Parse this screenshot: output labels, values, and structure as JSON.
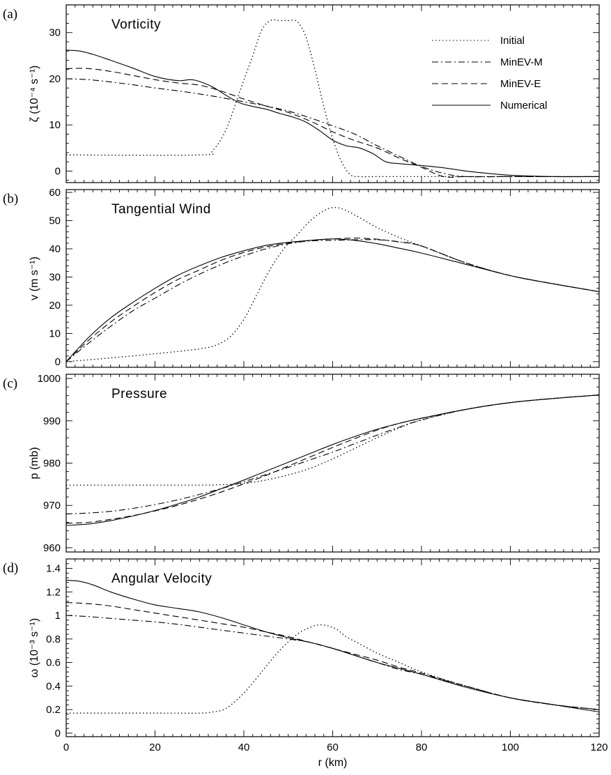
{
  "chart_data": [
    {
      "panel": "(a)",
      "title": "Vorticity",
      "type": "line",
      "ylabel": "ζ (10⁻⁴ s⁻¹)",
      "xlim": [
        0,
        120
      ],
      "ylim": [
        -2.5,
        36
      ],
      "yticks": [
        0,
        10,
        20,
        30
      ],
      "legend_position": "top-right",
      "series": [
        {
          "name": "Initial",
          "style": "dotted",
          "x": [
            0,
            30,
            33,
            36,
            39,
            42,
            44,
            46,
            48,
            50,
            52,
            54,
            56,
            58,
            60,
            62,
            64,
            66,
            70,
            80,
            100,
            120
          ],
          "y": [
            3.5,
            3.5,
            4.5,
            9,
            17,
            25,
            30.5,
            32.6,
            32.6,
            32.6,
            32.4,
            29,
            22,
            14,
            7,
            2,
            -0.8,
            -1.2,
            -1.2,
            -1.2,
            -1.2,
            -1.2
          ]
        },
        {
          "name": "MinEV-M",
          "style": "dashdot",
          "x": [
            0,
            5,
            10,
            15,
            20,
            25,
            30,
            35,
            40,
            45,
            50,
            55,
            60,
            65,
            70,
            75,
            80,
            85,
            90,
            100,
            110,
            120
          ],
          "y": [
            20,
            19.8,
            19.3,
            18.7,
            18,
            17.4,
            16.7,
            15.9,
            15,
            14.1,
            13,
            11.5,
            9.8,
            8,
            5.5,
            3.2,
            1,
            -0.5,
            -1.2,
            -1.2,
            -1.2,
            -1.2
          ]
        },
        {
          "name": "MinEV-E",
          "style": "dashed",
          "x": [
            0,
            5,
            10,
            15,
            20,
            25,
            30,
            35,
            40,
            45,
            50,
            55,
            60,
            65,
            70,
            75,
            80,
            85,
            90,
            100,
            110,
            120
          ],
          "y": [
            22.2,
            22.2,
            21.6,
            20.7,
            19.8,
            19.1,
            18.6,
            17.3,
            15.6,
            14.1,
            12.7,
            10.8,
            8.5,
            6.6,
            5,
            2.8,
            0.8,
            -1.2,
            -1.2,
            -1.2,
            -1.2,
            -1.2
          ]
        },
        {
          "name": "Numerical",
          "style": "solid",
          "x": [
            0,
            3,
            6,
            10,
            15,
            20,
            25,
            28,
            30,
            33,
            36,
            39,
            42,
            45,
            48,
            51,
            54,
            57,
            60,
            63,
            66,
            69,
            72,
            75,
            80,
            85,
            90,
            95,
            100,
            110,
            120
          ],
          "y": [
            26.2,
            26,
            25.3,
            24,
            22.3,
            20.5,
            19.6,
            19.8,
            19.4,
            18.2,
            16.4,
            14.8,
            14,
            13.4,
            12.5,
            11.7,
            10.6,
            8.8,
            6.7,
            5.5,
            5,
            3.8,
            2,
            1.6,
            1.2,
            0.7,
            0,
            -0.5,
            -0.9,
            -1.2,
            -1.2
          ]
        }
      ]
    },
    {
      "panel": "(b)",
      "title": "Tangential Wind",
      "type": "line",
      "ylabel": "v (m s⁻¹)",
      "xlim": [
        0,
        120
      ],
      "ylim": [
        -2,
        61
      ],
      "yticks": [
        0,
        10,
        20,
        30,
        40,
        50,
        60
      ],
      "series": [
        {
          "name": "Initial",
          "style": "dotted",
          "x": [
            0,
            10,
            20,
            30,
            34,
            37,
            40,
            43,
            46,
            49,
            52,
            55,
            58,
            60,
            62,
            65,
            70,
            75,
            80,
            90,
            100,
            110,
            120
          ],
          "y": [
            0,
            1.3,
            2.8,
            4.5,
            6,
            9,
            15,
            24,
            33,
            40,
            45,
            50,
            53.5,
            54.6,
            54.2,
            52,
            47.5,
            44,
            41,
            35,
            30.5,
            27.5,
            24.8
          ]
        },
        {
          "name": "MinEV-M",
          "style": "dashdot",
          "x": [
            0,
            5,
            10,
            15,
            20,
            25,
            30,
            35,
            40,
            45,
            50,
            55,
            60,
            65,
            70,
            75,
            80,
            90,
            100,
            110,
            120
          ],
          "y": [
            0,
            6.5,
            12.5,
            18,
            22.5,
            27,
            31,
            34.5,
            37.5,
            40,
            41.8,
            42.8,
            43,
            43.2,
            43.2,
            42.5,
            41,
            35,
            30.5,
            27.5,
            24.8
          ]
        },
        {
          "name": "MinEV-E",
          "style": "dashed",
          "x": [
            0,
            5,
            10,
            15,
            20,
            25,
            30,
            35,
            40,
            45,
            50,
            55,
            60,
            65,
            70,
            75,
            80,
            90,
            100,
            110,
            120
          ],
          "y": [
            0,
            7.5,
            14,
            19.5,
            24.5,
            29,
            32.5,
            36,
            38.7,
            40.7,
            42,
            43,
            43.5,
            43.8,
            43.4,
            42.4,
            41,
            35,
            30.5,
            27.5,
            24.8
          ]
        },
        {
          "name": "Numerical",
          "style": "solid",
          "x": [
            0,
            5,
            10,
            15,
            20,
            25,
            30,
            35,
            40,
            45,
            50,
            55,
            60,
            65,
            70,
            75,
            80,
            90,
            100,
            110,
            120
          ],
          "y": [
            0,
            8.5,
            15.5,
            21,
            26,
            30.5,
            34,
            37,
            39.3,
            41.2,
            42.3,
            43,
            43.5,
            43,
            41.8,
            40.2,
            38.5,
            34.5,
            30.5,
            27.5,
            24.8
          ]
        }
      ]
    },
    {
      "panel": "(c)",
      "title": "Pressure",
      "type": "line",
      "ylabel": "p (mb)",
      "xlim": [
        0,
        120
      ],
      "ylim": [
        959,
        1001
      ],
      "yticks": [
        960,
        970,
        980,
        990,
        1000
      ],
      "series": [
        {
          "name": "Initial",
          "style": "dotted",
          "x": [
            0,
            20,
            30,
            35,
            40,
            45,
            50,
            55,
            60,
            65,
            70,
            75,
            80,
            90,
            100,
            110,
            120
          ],
          "y": [
            974.8,
            974.8,
            974.8,
            974.9,
            975.2,
            976,
            977.2,
            978.8,
            981,
            983.5,
            986,
            988.3,
            990.2,
            992.7,
            994.3,
            995.3,
            996.1
          ]
        },
        {
          "name": "MinEV-M",
          "style": "dashdot",
          "x": [
            0,
            5,
            10,
            15,
            20,
            25,
            30,
            35,
            40,
            45,
            50,
            55,
            60,
            65,
            70,
            75,
            80,
            90,
            100,
            110,
            120
          ],
          "y": [
            968,
            968.2,
            968.6,
            969.3,
            970.2,
            971.3,
            972.6,
            974,
            975.6,
            977.3,
            979,
            980.8,
            982.6,
            984.6,
            986.6,
            988.5,
            990.2,
            992.7,
            994.3,
            995.3,
            996.1
          ]
        },
        {
          "name": "MinEV-E",
          "style": "dashed",
          "x": [
            0,
            5,
            10,
            15,
            20,
            25,
            30,
            35,
            40,
            45,
            50,
            55,
            60,
            65,
            70,
            75,
            80,
            90,
            100,
            110,
            120
          ],
          "y": [
            965.8,
            966,
            966.7,
            967.6,
            968.7,
            970,
            971.5,
            973.2,
            975.1,
            977.1,
            979.3,
            981.5,
            983.7,
            985.8,
            987.8,
            989.4,
            990.6,
            992.7,
            994.3,
            995.3,
            996.1
          ]
        },
        {
          "name": "Numerical",
          "style": "solid",
          "x": [
            0,
            5,
            10,
            15,
            20,
            25,
            30,
            35,
            40,
            45,
            50,
            55,
            60,
            65,
            70,
            75,
            80,
            90,
            100,
            110,
            120
          ],
          "y": [
            965.3,
            965.6,
            966.4,
            967.5,
            968.8,
            970.3,
            972,
            974,
            976,
            978.1,
            980.2,
            982.3,
            984.4,
            986.3,
            988,
            989.4,
            990.6,
            992.7,
            994.3,
            995.3,
            996.1
          ]
        }
      ]
    },
    {
      "panel": "(d)",
      "title": "Angular Velocity",
      "type": "line",
      "xlabel": "r (km)",
      "ylabel": "ω (10⁻³ s⁻¹)",
      "xlim": [
        0,
        120
      ],
      "ylim": [
        -0.03,
        1.48
      ],
      "xticks": [
        0,
        20,
        40,
        60,
        80,
        100,
        120
      ],
      "yticks": [
        0.0,
        0.2,
        0.4,
        0.6,
        0.8,
        1.0,
        1.2,
        1.4
      ],
      "series": [
        {
          "name": "Initial",
          "style": "dotted",
          "x": [
            0,
            20,
            30,
            33,
            36,
            40,
            44,
            48,
            52,
            55,
            57,
            59,
            61,
            63,
            66,
            70,
            75,
            80,
            90,
            100,
            110,
            120
          ],
          "y": [
            0.17,
            0.17,
            0.17,
            0.18,
            0.21,
            0.34,
            0.52,
            0.7,
            0.84,
            0.9,
            0.92,
            0.91,
            0.88,
            0.82,
            0.76,
            0.68,
            0.6,
            0.52,
            0.4,
            0.3,
            0.24,
            0.2
          ]
        },
        {
          "name": "MinEV-M",
          "style": "dashdot",
          "x": [
            0,
            5,
            10,
            15,
            20,
            25,
            30,
            35,
            40,
            45,
            50,
            55,
            60,
            65,
            70,
            75,
            80,
            90,
            100,
            110,
            120
          ],
          "y": [
            1.0,
            0.99,
            0.975,
            0.96,
            0.945,
            0.925,
            0.9,
            0.875,
            0.85,
            0.825,
            0.8,
            0.77,
            0.72,
            0.66,
            0.6,
            0.54,
            0.5,
            0.4,
            0.3,
            0.24,
            0.2
          ]
        },
        {
          "name": "MinEV-E",
          "style": "dashed",
          "x": [
            0,
            5,
            10,
            15,
            20,
            25,
            30,
            35,
            40,
            45,
            50,
            55,
            60,
            65,
            70,
            75,
            80,
            90,
            100,
            110,
            120
          ],
          "y": [
            1.11,
            1.1,
            1.08,
            1.05,
            1.02,
            0.99,
            0.96,
            0.93,
            0.9,
            0.86,
            0.82,
            0.77,
            0.72,
            0.67,
            0.62,
            0.56,
            0.51,
            0.4,
            0.3,
            0.24,
            0.2
          ]
        },
        {
          "name": "Numerical",
          "style": "solid",
          "x": [
            0,
            3,
            6,
            10,
            15,
            20,
            25,
            30,
            35,
            40,
            45,
            50,
            55,
            60,
            65,
            70,
            75,
            80,
            90,
            100,
            110,
            120
          ],
          "y": [
            1.3,
            1.29,
            1.26,
            1.2,
            1.14,
            1.09,
            1.06,
            1.03,
            0.98,
            0.92,
            0.86,
            0.81,
            0.77,
            0.72,
            0.66,
            0.6,
            0.55,
            0.5,
            0.39,
            0.3,
            0.24,
            0.18
          ]
        }
      ]
    }
  ]
}
